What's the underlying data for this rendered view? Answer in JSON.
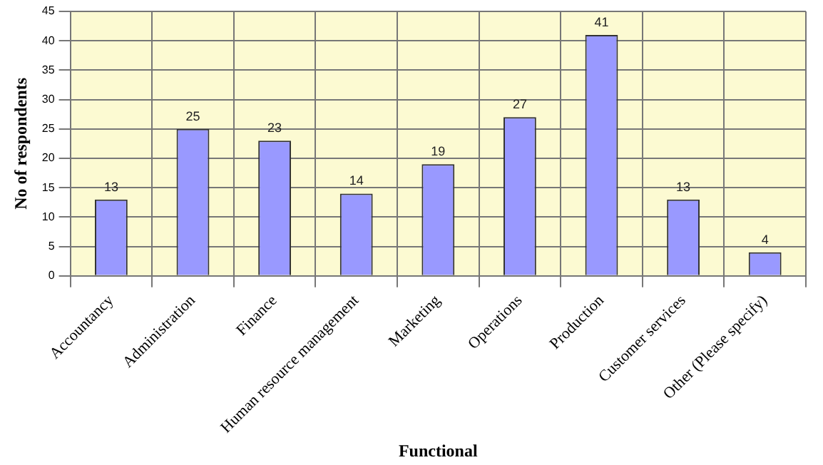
{
  "chart_data": {
    "type": "bar",
    "xlabel": "Functional",
    "ylabel": "No of respondents",
    "categories": [
      "Accountancy",
      "Administration",
      "Finance",
      "Human resource management",
      "Marketing",
      "Operations",
      "Production",
      "Customer services",
      "Other (Please specify)"
    ],
    "values": [
      13,
      25,
      23,
      14,
      19,
      27,
      41,
      13,
      4
    ],
    "color": "#9999ff",
    "data_labels": true,
    "ylim": [
      0,
      45
    ],
    "yticks": [
      0,
      5,
      10,
      15,
      20,
      25,
      30,
      35,
      40,
      45
    ],
    "grid": true,
    "legend": false
  }
}
